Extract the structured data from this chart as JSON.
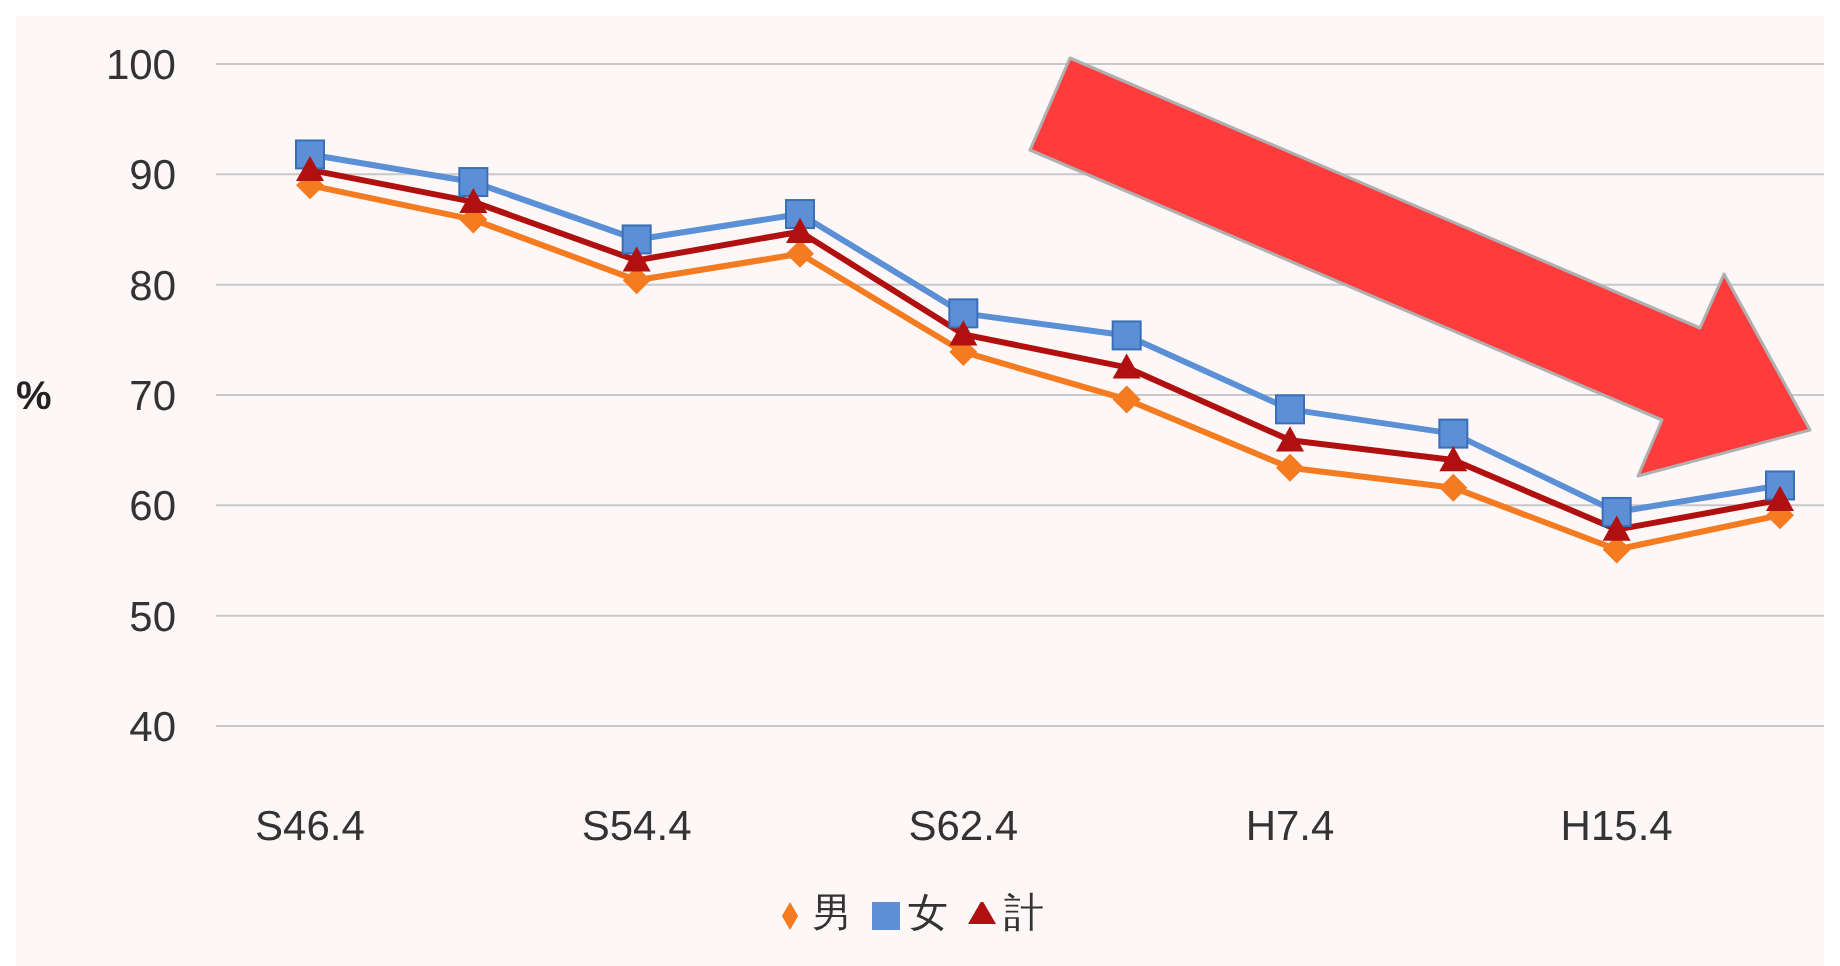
{
  "chart_data": {
    "type": "line",
    "ylabel": "%",
    "categories": [
      "S46.4",
      null,
      "S54.4",
      null,
      "S62.4",
      null,
      "H7.4",
      null,
      "H15.4",
      null
    ],
    "series": [
      {
        "name": "男",
        "color": "#f47b20",
        "marker": "diamond",
        "values": [
          89.0,
          85.9,
          80.4,
          82.8,
          73.9,
          69.6,
          63.4,
          61.6,
          56.0,
          59.1
        ]
      },
      {
        "name": "女",
        "color": "#5b8fd6",
        "marker": "square",
        "values": [
          91.8,
          89.3,
          84.1,
          86.4,
          77.4,
          75.4,
          68.7,
          66.5,
          59.4,
          61.8
        ]
      },
      {
        "name": "計",
        "color": "#b0100f",
        "marker": "triangle",
        "values": [
          90.4,
          87.5,
          82.2,
          84.8,
          75.5,
          72.5,
          65.9,
          64.1,
          57.8,
          60.5
        ]
      }
    ],
    "ylim": [
      40,
      100
    ],
    "yticks": [
      40,
      50,
      60,
      70,
      80,
      90,
      100
    ],
    "grid": "y",
    "legend": "bottom"
  }
}
